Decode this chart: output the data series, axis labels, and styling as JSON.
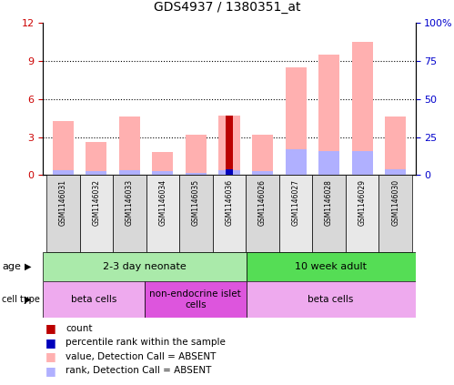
{
  "title": "GDS4937 / 1380351_at",
  "samples": [
    "GSM1146031",
    "GSM1146032",
    "GSM1146033",
    "GSM1146034",
    "GSM1146035",
    "GSM1146036",
    "GSM1146026",
    "GSM1146027",
    "GSM1146028",
    "GSM1146029",
    "GSM1146030"
  ],
  "value_absent": [
    4.3,
    2.6,
    4.6,
    1.8,
    3.2,
    4.7,
    3.2,
    8.5,
    9.5,
    10.5,
    4.6
  ],
  "rank_absent_pct": [
    3.0,
    2.5,
    3.0,
    2.5,
    1.5,
    3.0,
    2.5,
    17.0,
    16.0,
    16.0,
    4.0
  ],
  "count_val": [
    0,
    0,
    0,
    0,
    0,
    4.7,
    0,
    0,
    0,
    0,
    0
  ],
  "rank_present_pct": [
    0,
    0,
    0,
    0,
    0,
    4.0,
    0,
    0,
    0,
    0,
    0
  ],
  "ylim_left": [
    0,
    12
  ],
  "ylim_right": [
    0,
    100
  ],
  "yticks_left": [
    0,
    3,
    6,
    9,
    12
  ],
  "ytick_labels_left": [
    "0",
    "3",
    "6",
    "9",
    "12"
  ],
  "yticks_right": [
    0,
    25,
    50,
    75,
    100
  ],
  "ytick_labels_right": [
    "0",
    "25",
    "50",
    "75",
    "100%"
  ],
  "color_count": "#bb0000",
  "color_rank_present": "#0000bb",
  "color_value_absent": "#ffb0b0",
  "color_rank_absent": "#b0b0ff",
  "age_groups": [
    {
      "label": "2-3 day neonate",
      "start": 0,
      "end": 6,
      "color": "#aaeaaa"
    },
    {
      "label": "10 week adult",
      "start": 6,
      "end": 11,
      "color": "#55dd55"
    }
  ],
  "cell_type_groups": [
    {
      "label": "beta cells",
      "start": 0,
      "end": 3,
      "color": "#eeaaee"
    },
    {
      "label": "non-endocrine islet\ncells",
      "start": 3,
      "end": 6,
      "color": "#dd55dd"
    },
    {
      "label": "beta cells",
      "start": 6,
      "end": 11,
      "color": "#eeaaee"
    }
  ],
  "legend_items": [
    {
      "label": "count",
      "color": "#bb0000"
    },
    {
      "label": "percentile rank within the sample",
      "color": "#0000bb"
    },
    {
      "label": "value, Detection Call = ABSENT",
      "color": "#ffb0b0"
    },
    {
      "label": "rank, Detection Call = ABSENT",
      "color": "#b0b0ff"
    }
  ],
  "col_colors": [
    "#d8d8d8",
    "#e8e8e8",
    "#d8d8d8",
    "#e8e8e8",
    "#d8d8d8",
    "#e8e8e8",
    "#d8d8d8",
    "#e8e8e8",
    "#d8d8d8",
    "#e8e8e8",
    "#d8d8d8"
  ]
}
